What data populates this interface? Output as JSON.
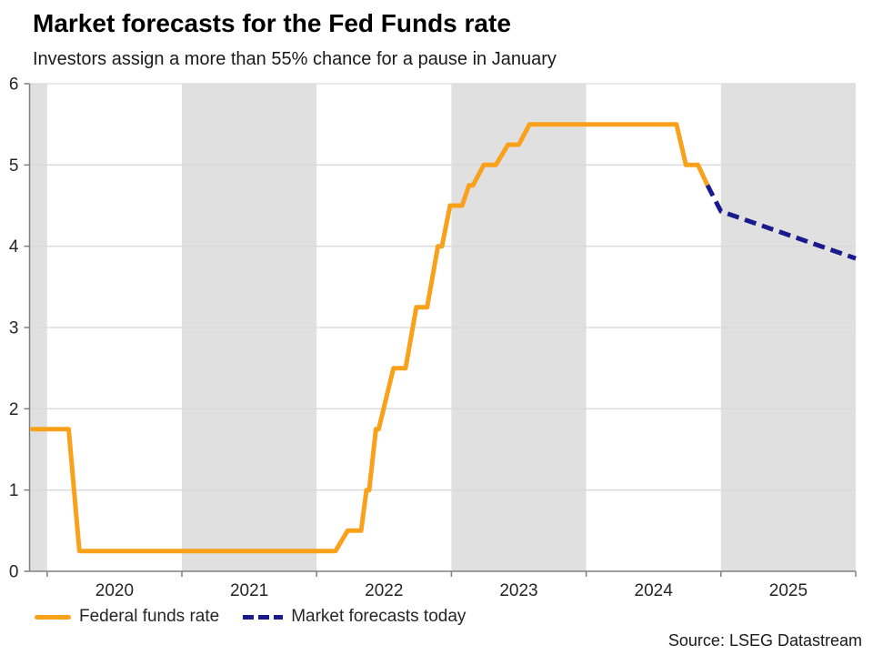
{
  "chart_data": {
    "type": "line",
    "title": "Market forecasts for the Fed Funds rate",
    "subtitle": "Investors assign a more than 55% chance for a pause in January",
    "source": "Source: LSEG Datastream",
    "x_axis": {
      "range": [
        2019.87,
        2026.0
      ],
      "boundaries": [
        2020,
        2021,
        2022,
        2023,
        2024,
        2025,
        2026
      ],
      "tick_labels": [
        "2020",
        "2021",
        "2022",
        "2023",
        "2024",
        "2025"
      ]
    },
    "y_axis": {
      "range": [
        0,
        6
      ],
      "tick_labels": [
        "0",
        "1",
        "2",
        "3",
        "4",
        "5",
        "6"
      ]
    },
    "shaded_year_bands": [
      [
        2019.87,
        2020
      ],
      [
        2021,
        2022
      ],
      [
        2023,
        2024
      ],
      [
        2025,
        2026
      ]
    ],
    "colors": {
      "band": "#E0E0E0",
      "grid": "#D9D9D9",
      "axis": "#808080",
      "text": "#262626"
    },
    "legend_position": "bottom-left",
    "series": [
      {
        "name": "Federal funds rate",
        "style": "solid",
        "color": "#F9A11B",
        "points": [
          [
            2019.89,
            1.75
          ],
          [
            2020.16,
            1.75
          ],
          [
            2020.24,
            0.25
          ],
          [
            2022.14,
            0.25
          ],
          [
            2022.23,
            0.5
          ],
          [
            2022.33,
            0.5
          ],
          [
            2022.37,
            1.0
          ],
          [
            2022.39,
            1.0
          ],
          [
            2022.44,
            1.75
          ],
          [
            2022.46,
            1.75
          ],
          [
            2022.57,
            2.5
          ],
          [
            2022.66,
            2.5
          ],
          [
            2022.74,
            3.25
          ],
          [
            2022.82,
            3.25
          ],
          [
            2022.9,
            4.0
          ],
          [
            2022.93,
            4.0
          ],
          [
            2022.99,
            4.5
          ],
          [
            2023.08,
            4.5
          ],
          [
            2023.13,
            4.75
          ],
          [
            2023.16,
            4.75
          ],
          [
            2023.24,
            5.0
          ],
          [
            2023.33,
            5.0
          ],
          [
            2023.42,
            5.25
          ],
          [
            2023.5,
            5.25
          ],
          [
            2023.58,
            5.5
          ],
          [
            2024.67,
            5.5
          ],
          [
            2024.74,
            5.0
          ],
          [
            2024.83,
            5.0
          ],
          [
            2024.9,
            4.75
          ]
        ]
      },
      {
        "name": "Market forecasts today",
        "style": "dashed",
        "color": "#1A1A8C",
        "points": [
          [
            2024.9,
            4.75
          ],
          [
            2025.0,
            4.43
          ],
          [
            2026.0,
            3.85
          ]
        ]
      }
    ]
  }
}
